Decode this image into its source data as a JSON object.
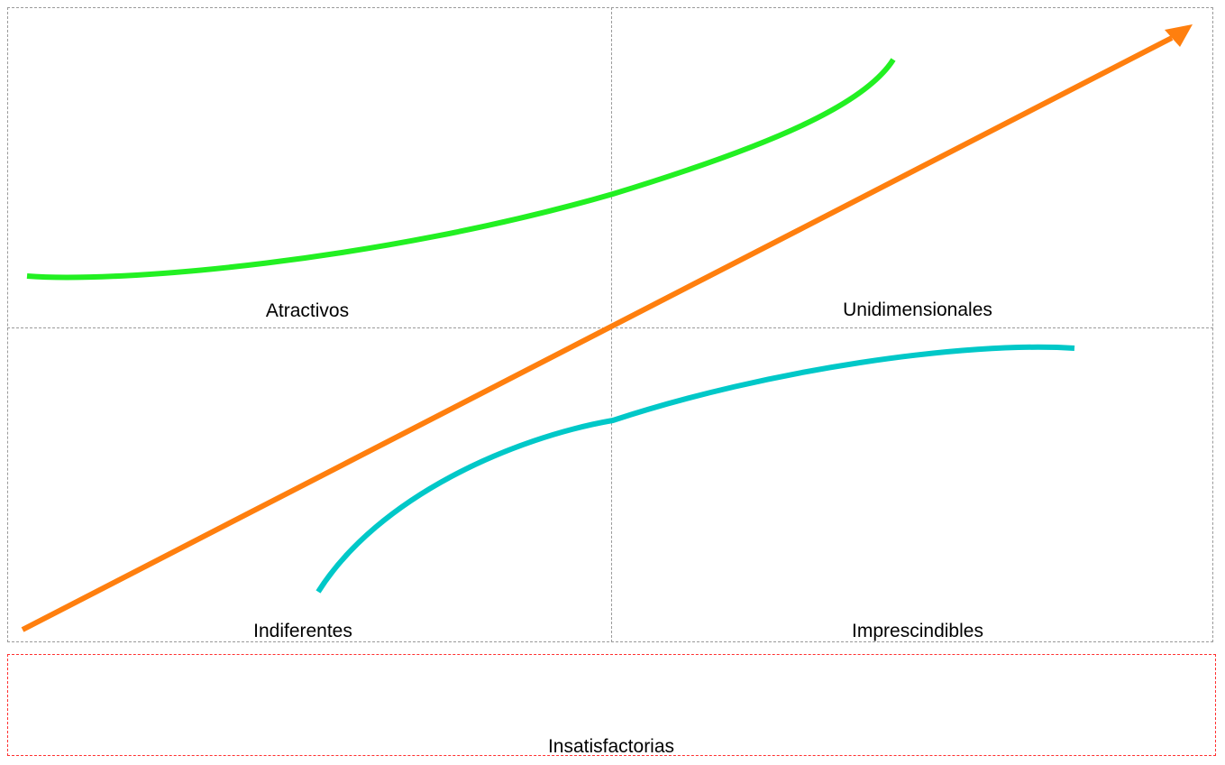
{
  "quadrants": {
    "top_left": "Atractivos",
    "top_right": "Unidimensionales",
    "bottom_left": "Indiferentes",
    "bottom_right": "Imprescindibles"
  },
  "bottom_panel": {
    "label": "Insatisfactorias"
  },
  "colors": {
    "attractive_curve": "#22f022",
    "one_dimensional_arrow": "#ff7f0e",
    "must_be_curve": "#00c8c8",
    "grid_line": "#9a9a9a",
    "bottom_box_border": "#ff3030"
  }
}
